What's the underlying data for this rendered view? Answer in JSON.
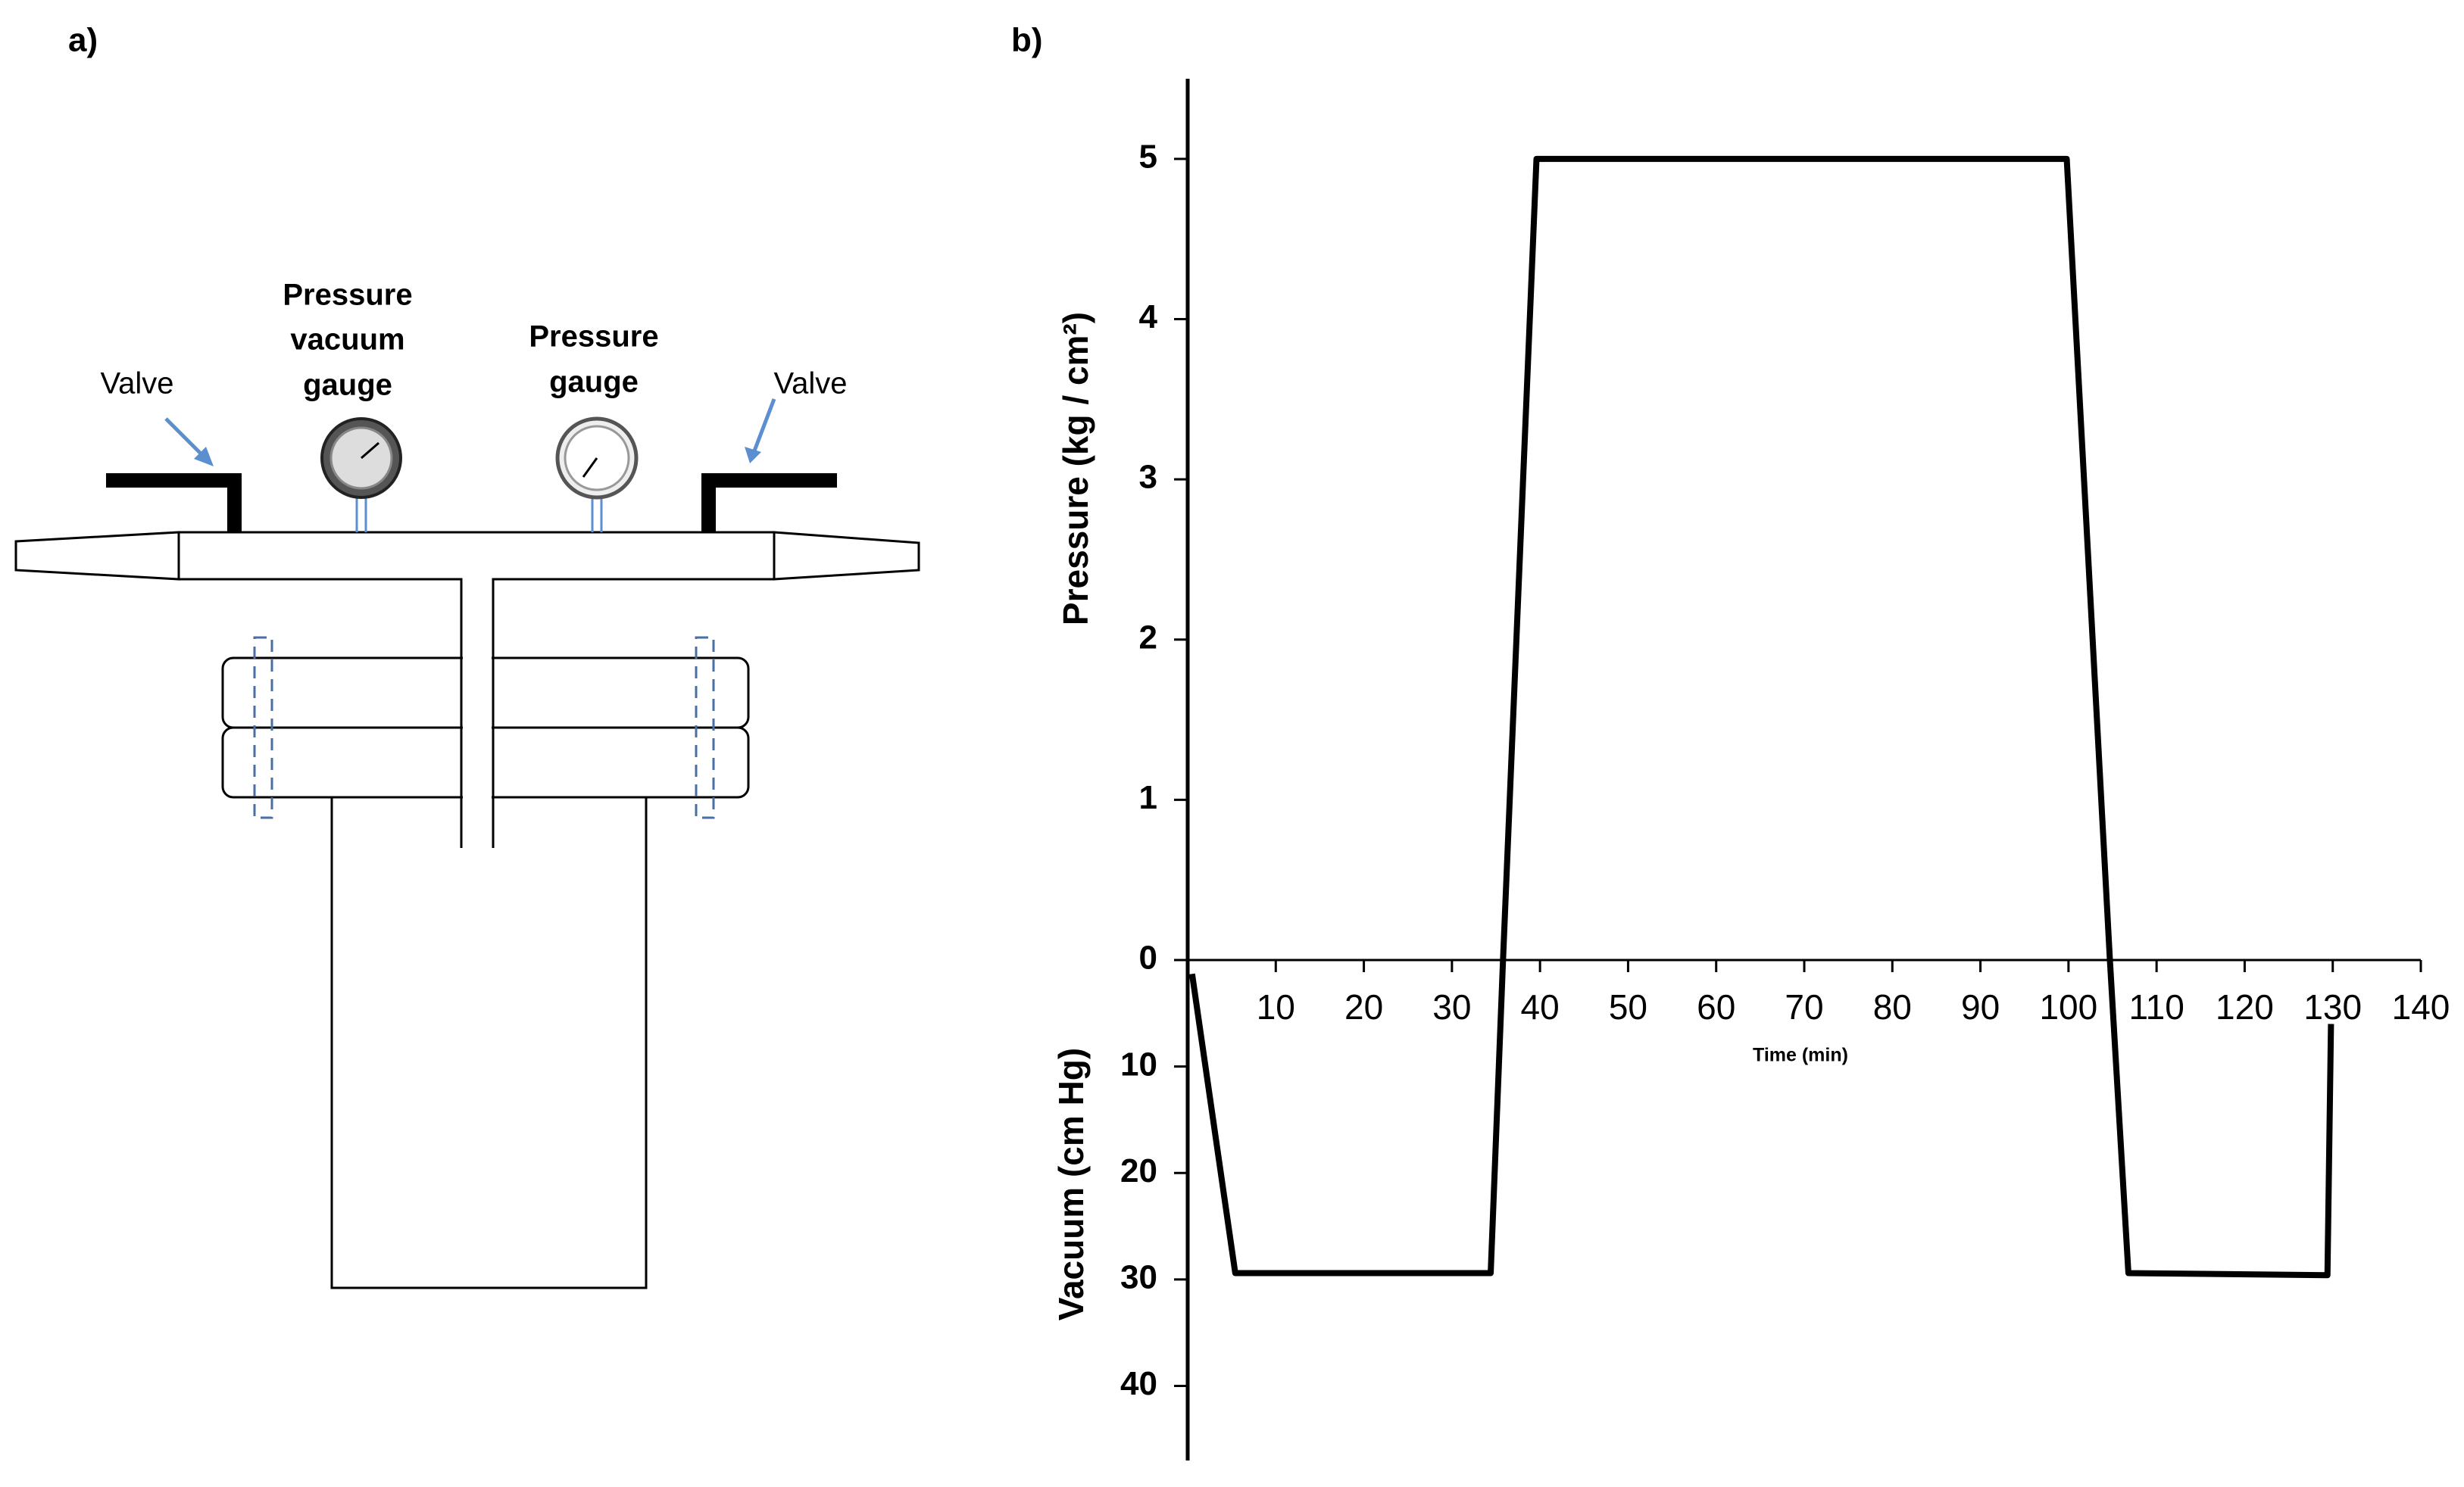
{
  "panels": [
    "a)",
    "b)"
  ],
  "diagram": {
    "labels": [
      {
        "lines": [
          "Valve"
        ]
      },
      {
        "lines": [
          "Pressure",
          "vacuum",
          "gauge"
        ]
      },
      {
        "lines": [
          "Pressure",
          "gauge"
        ]
      },
      {
        "lines": [
          "Valve"
        ]
      }
    ]
  },
  "chart_data": {
    "type": "line",
    "xlabel": "Time (min)",
    "ylabel": "Pressure (kg / cm²)",
    "y2label": "Vacuum (cm Hg)",
    "x": [
      0.5,
      5.4,
      34.4,
      35.8,
      39.6,
      99.8,
      104.7,
      106.8,
      129.4,
      129.8
    ],
    "series": [
      {
        "color": "#000000",
        "axis": "y",
        "values": [
          null,
          null,
          null,
          0,
          5,
          5,
          0,
          null,
          null,
          null
        ]
      },
      {
        "color": "#000000",
        "axis": "y2",
        "values": [
          1.3,
          29.4,
          29.4,
          0,
          null,
          null,
          0,
          29.4,
          29.6,
          6
        ]
      }
    ],
    "xlim": [
      0,
      140
    ],
    "xticks": [
      10,
      20,
      30,
      40,
      50,
      60,
      70,
      80,
      90,
      100,
      110,
      120,
      130,
      140
    ],
    "ylim": [
      0,
      5.5
    ],
    "yticks": [
      0,
      1,
      2,
      3,
      4,
      5
    ],
    "y2lim": [
      0,
      47
    ],
    "y2ticks": [
      10,
      20,
      30,
      40
    ],
    "y2_inverted": true,
    "grid": false
  }
}
